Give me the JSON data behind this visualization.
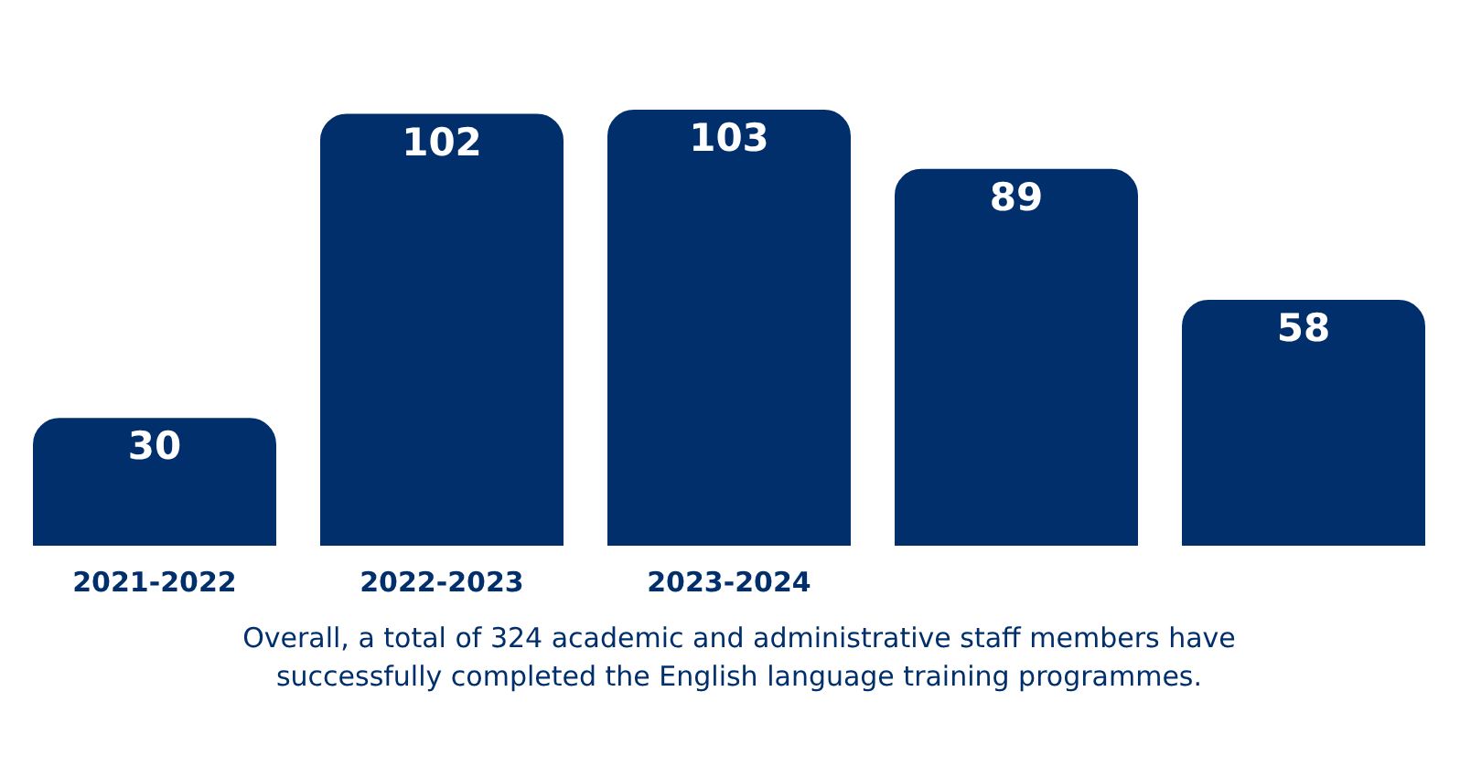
{
  "chart_data": {
    "type": "bar",
    "categories": [
      "2021-2022",
      "2022-2023",
      "2023-2024",
      null,
      null
    ],
    "values": [
      30,
      102,
      103,
      89,
      58
    ],
    "color": "#002f6c",
    "data_labels": true,
    "grid": false,
    "annotations": [
      "Overall, a total of 324 academic and administrative staff members have successfully completed the English language training programmes."
    ]
  }
}
